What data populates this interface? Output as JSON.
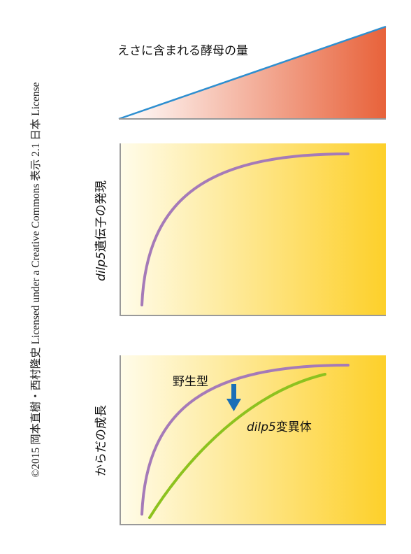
{
  "credit": "©2015 岡本直樹・西村隆史 Licensed under a Creative Commons 表示 2.1 日本 License",
  "top_panel": {
    "label": "えさに含まれる酵母の量",
    "colors": {
      "fill_start": "#ffffff",
      "fill_end": "#e8623a",
      "edge": "#2e8fd0",
      "baseline": "#999999"
    }
  },
  "middle_panel": {
    "ylabel_gene": "dilp5",
    "ylabel_rest": "遺伝子の発現",
    "colors": {
      "bg_start": "#fffcea",
      "bg_end": "#fdd02a",
      "curve": "#a57ab8"
    }
  },
  "bottom_panel": {
    "ylabel": "からだの成長",
    "wildtype_label": "野生型",
    "mutant_gene": "dilp5",
    "mutant_rest": "変異体",
    "arrow_icon": "down-arrow-icon",
    "colors": {
      "bg_start": "#fffcea",
      "bg_end": "#fdd02a",
      "wildtype": "#a57ab8",
      "mutant": "#8dc21f",
      "arrow": "#1a6fb7"
    }
  }
}
